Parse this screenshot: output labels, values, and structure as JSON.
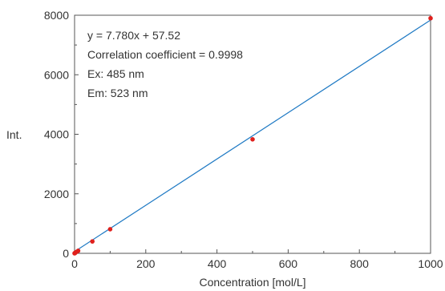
{
  "chart_data": {
    "type": "scatter",
    "xlabel": "Concentration [mol/L]",
    "ylabel": "Int.",
    "xlim": [
      0,
      1000
    ],
    "ylim": [
      0,
      8000
    ],
    "xticks": [
      0,
      200,
      400,
      600,
      800,
      1000
    ],
    "yticks": [
      0,
      2000,
      4000,
      6000,
      8000
    ],
    "grid": false,
    "legend": "none",
    "series": [
      {
        "type": "scatter",
        "color": "#e0201c",
        "x": [
          0,
          1,
          2,
          5,
          10,
          50,
          100,
          500,
          1000
        ],
        "y": [
          0,
          10,
          20,
          45,
          85,
          400,
          810,
          3830,
          7900
        ]
      },
      {
        "type": "line",
        "color": "#1f7ac4",
        "x": [
          0,
          1000
        ],
        "y": [
          57.52,
          7837.52
        ]
      }
    ],
    "annotations": [
      "y = 7.780x + 57.52",
      "Correlation coefficient = 0.9998",
      "Ex: 485 nm",
      "Em: 523 nm"
    ]
  }
}
